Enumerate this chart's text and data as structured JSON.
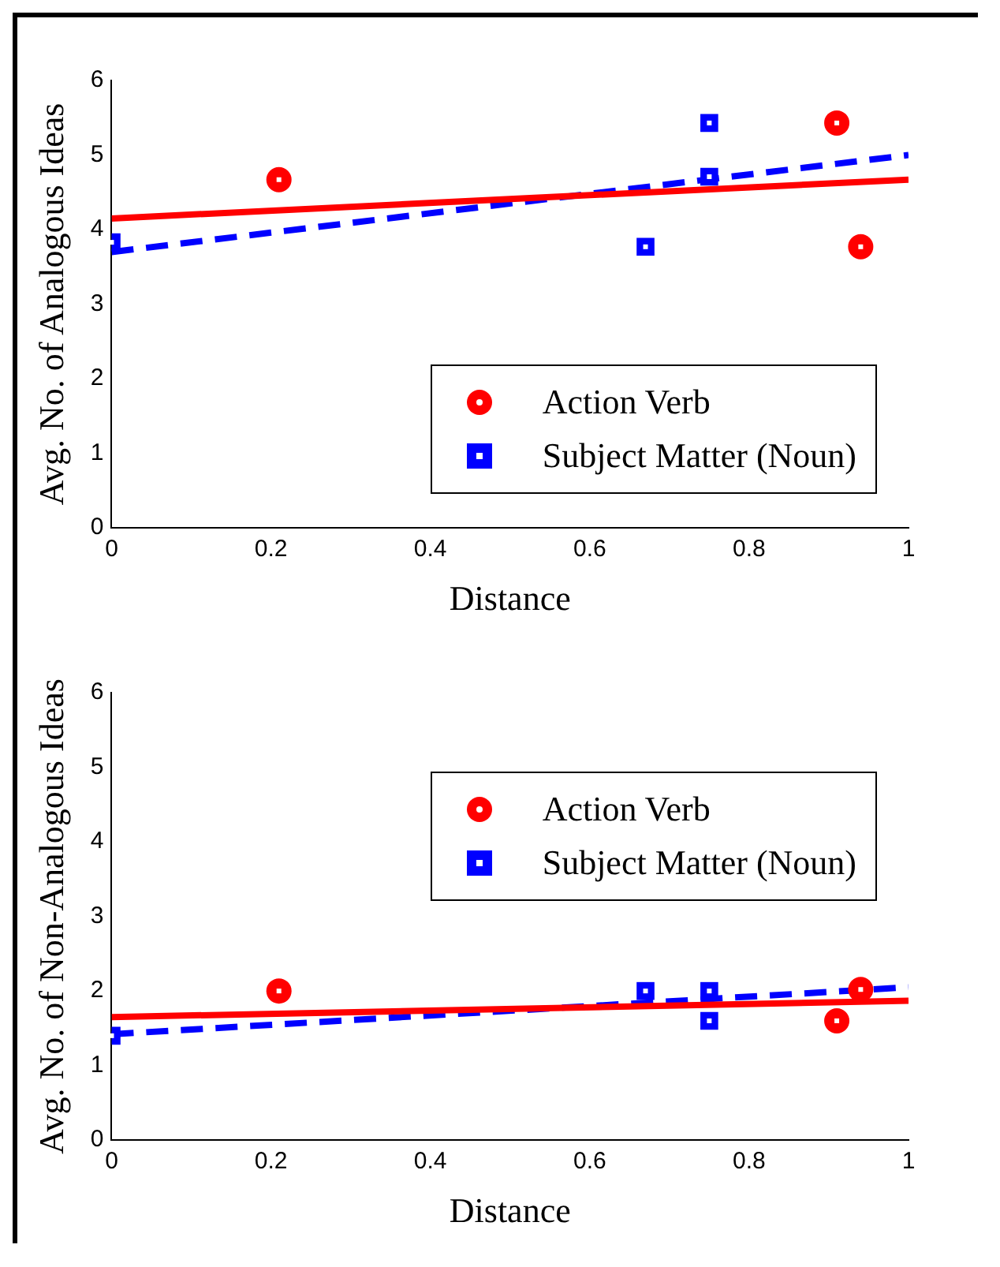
{
  "chart_data": [
    {
      "type": "scatter",
      "xlabel": "Distance",
      "ylabel": "Avg. No. of Analogous Ideas",
      "xlim": [
        0,
        1
      ],
      "xticks": [
        0,
        0.2,
        0.4,
        0.6,
        0.8,
        1
      ],
      "ylim": [
        0,
        6
      ],
      "yticks": [
        0,
        1,
        2,
        3,
        4,
        5,
        6
      ],
      "grid": false,
      "legend": "bottom right",
      "series": [
        {
          "name": "Action Verb",
          "color": "#ff0000",
          "marker": "circle",
          "x": [
            0.21,
            0.91,
            0.94
          ],
          "values": [
            4.67,
            5.43,
            3.77
          ]
        },
        {
          "name": "Subject Matter (Noun)",
          "color": "#0000ff",
          "marker": "square",
          "x": [
            0,
            0.67,
            0.75,
            0.75
          ],
          "values": [
            3.83,
            3.77,
            5.43,
            4.71
          ]
        },
        {
          "type": "line",
          "color": "#ff0000",
          "line_style": "solid",
          "x": [
            0,
            1
          ],
          "values": [
            4.15,
            4.67
          ]
        },
        {
          "type": "line",
          "color": "#0000ff",
          "line_style": "dashed",
          "x": [
            0,
            1
          ],
          "values": [
            3.7,
            5.0
          ]
        }
      ]
    },
    {
      "type": "scatter",
      "xlabel": "Distance",
      "ylabel": "Avg. No. of Non-Analogous Ideas",
      "xlim": [
        0,
        1
      ],
      "xticks": [
        0,
        0.2,
        0.4,
        0.6,
        0.8,
        1
      ],
      "ylim": [
        0,
        6
      ],
      "yticks": [
        0,
        1,
        2,
        3,
        4,
        5,
        6
      ],
      "grid": false,
      "legend": "top right",
      "series": [
        {
          "name": "Action Verb",
          "color": "#ff0000",
          "marker": "circle",
          "x": [
            0.21,
            0.91,
            0.94
          ],
          "values": [
            2.0,
            1.6,
            2.02
          ]
        },
        {
          "name": "Subject Matter (Noun)",
          "color": "#0000ff",
          "marker": "square",
          "x": [
            0,
            0.67,
            0.75,
            0.75
          ],
          "values": [
            1.4,
            2.0,
            2.0,
            1.6
          ]
        },
        {
          "type": "line",
          "color": "#ff0000",
          "line_style": "solid",
          "x": [
            0,
            1
          ],
          "values": [
            1.65,
            1.87
          ]
        },
        {
          "type": "line",
          "color": "#0000ff",
          "line_style": "dashed",
          "x": [
            0,
            1
          ],
          "values": [
            1.42,
            2.05
          ]
        }
      ]
    }
  ]
}
